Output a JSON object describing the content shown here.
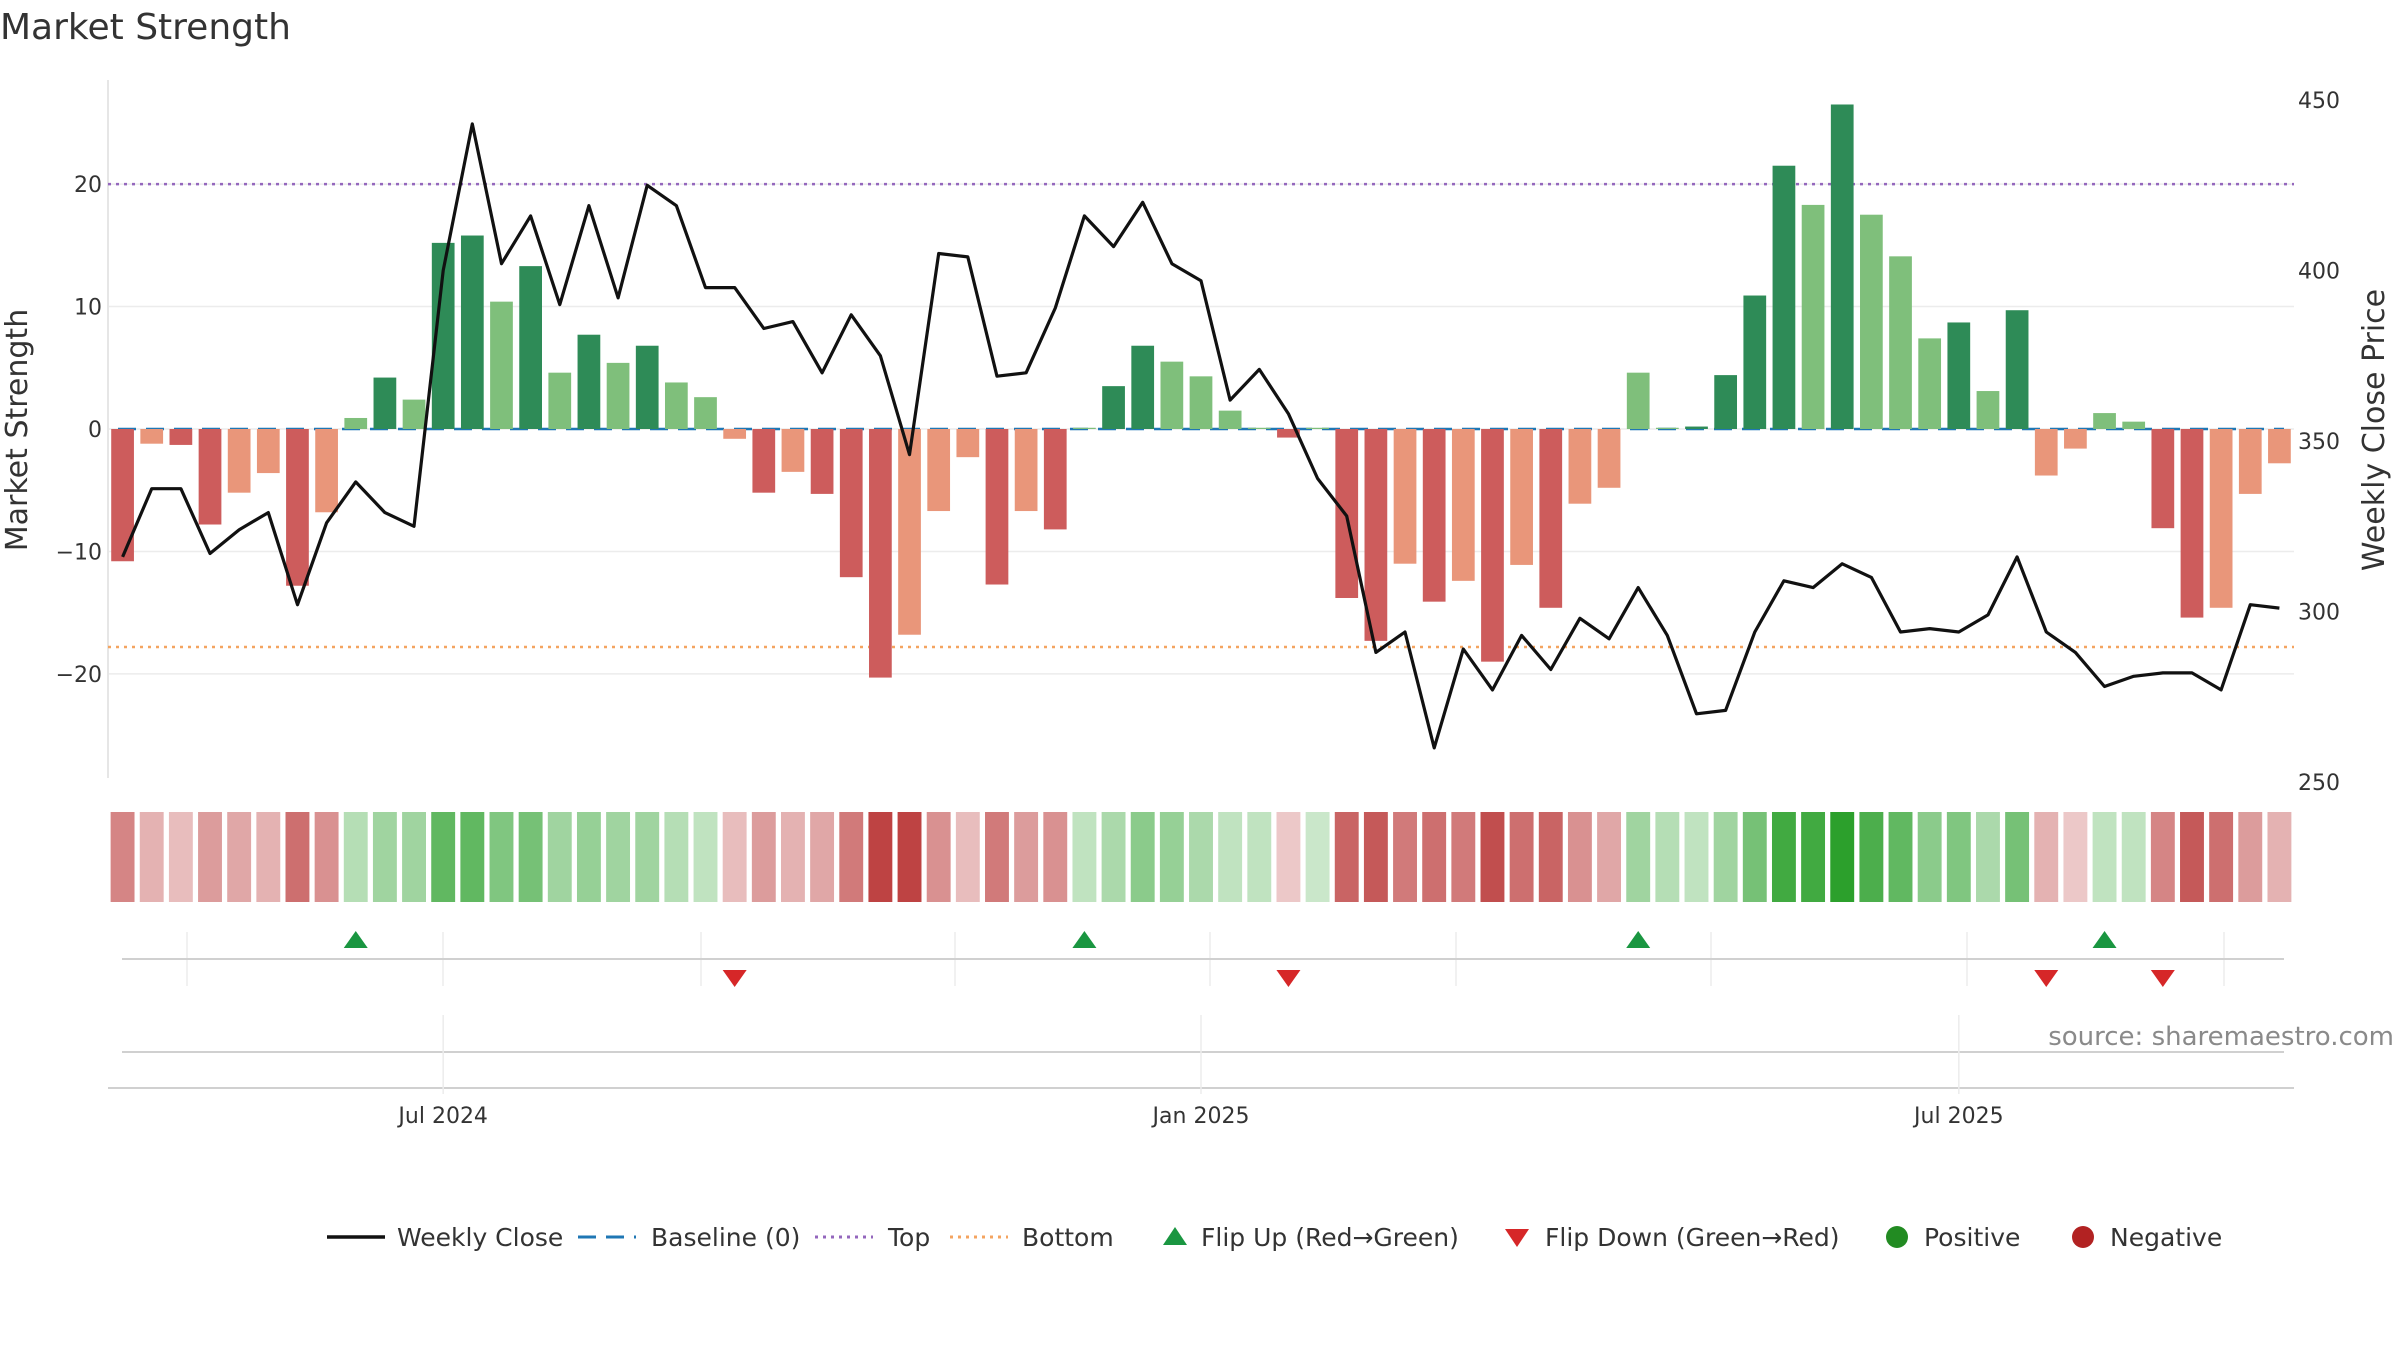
{
  "chart_data": {
    "type": "bar",
    "title": "Market Strength",
    "ylabel_left": "Market Strength",
    "ylabel_right": "Weekly Close Price",
    "ylim_left": [
      -28.5,
      28.5
    ],
    "ylim_right": [
      250,
      450
    ],
    "left_ticks": [
      20,
      10,
      0,
      -10,
      -20
    ],
    "left_tick_labels": [
      "20",
      "10",
      "0",
      "−10",
      "−20"
    ],
    "right_ticks": [
      450,
      400,
      350,
      300,
      250
    ],
    "right_tick_labels": [
      "450",
      "400",
      "350",
      "300",
      "250"
    ],
    "top_threshold": 20,
    "bottom_threshold": -17.8,
    "baseline": 0,
    "x_ticks": [
      {
        "index": 11,
        "label": "Jul 2024"
      },
      {
        "index": 37,
        "label": "Jan 2025"
      },
      {
        "index": 63,
        "label": "Jul 2025"
      }
    ],
    "strength": [
      -10.8,
      -1.2,
      -1.3,
      -7.8,
      -5.2,
      -3.6,
      -12.8,
      -6.8,
      0.9,
      4.2,
      2.4,
      15.2,
      15.8,
      10.4,
      13.3,
      4.6,
      7.7,
      5.4,
      6.8,
      3.8,
      2.6,
      -0.8,
      -5.2,
      -3.5,
      -5.3,
      -12.1,
      -20.3,
      -16.8,
      -6.7,
      -2.3,
      -12.7,
      -6.7,
      -8.2,
      0.1,
      3.5,
      6.8,
      5.5,
      4.3,
      1.5,
      0.1,
      -0.7,
      0.1,
      -13.8,
      -17.3,
      -11.0,
      -14.1,
      -12.4,
      -19.0,
      -11.1,
      -14.6,
      -6.1,
      -4.8,
      4.6,
      0.1,
      0.2,
      4.4,
      10.9,
      21.5,
      18.3,
      26.5,
      17.5,
      14.1,
      7.4,
      8.7,
      3.1,
      9.7,
      -3.8,
      -1.6,
      1.3,
      0.6,
      -8.1,
      -15.4,
      -14.6,
      -5.3,
      -2.8
    ],
    "heat_tint": [
      0.55,
      0.35,
      0.3,
      0.45,
      0.4,
      0.35,
      0.65,
      0.5,
      0.35,
      0.45,
      0.45,
      0.75,
      0.75,
      0.6,
      0.65,
      0.45,
      0.5,
      0.45,
      0.45,
      0.35,
      0.3,
      0.3,
      0.45,
      0.35,
      0.4,
      0.6,
      0.85,
      0.85,
      0.5,
      0.3,
      0.6,
      0.45,
      0.5,
      0.3,
      0.4,
      0.55,
      0.5,
      0.4,
      0.3,
      0.3,
      0.25,
      0.25,
      0.7,
      0.75,
      0.6,
      0.65,
      0.6,
      0.8,
      0.65,
      0.7,
      0.5,
      0.4,
      0.45,
      0.35,
      0.3,
      0.45,
      0.65,
      0.9,
      0.9,
      1.0,
      0.85,
      0.75,
      0.55,
      0.6,
      0.4,
      0.65,
      0.35,
      0.25,
      0.3,
      0.3,
      0.55,
      0.75,
      0.65,
      0.45,
      0.35
    ],
    "close": [
      316,
      336,
      336,
      317,
      324,
      329,
      302,
      326,
      338,
      329,
      325,
      400,
      443,
      402,
      416,
      390,
      419,
      392,
      425,
      419,
      395,
      395,
      383,
      385,
      370,
      387,
      375,
      346,
      405,
      404,
      369,
      370,
      389,
      416,
      407,
      420,
      402,
      397,
      362,
      371,
      358,
      339,
      328,
      288,
      294,
      260,
      289,
      277,
      293,
      283,
      298,
      292,
      307,
      293,
      270,
      271,
      294,
      309,
      307,
      314,
      310,
      294,
      295,
      294,
      299,
      316,
      294,
      288,
      278,
      281,
      282,
      282,
      277,
      302,
      301
    ],
    "flips": [
      {
        "index": 8,
        "dir": "up"
      },
      {
        "index": 21,
        "dir": "down"
      },
      {
        "index": 33,
        "dir": "up"
      },
      {
        "index": 40,
        "dir": "down"
      },
      {
        "index": 52,
        "dir": "up"
      },
      {
        "index": 66,
        "dir": "down"
      },
      {
        "index": 68,
        "dir": "up"
      },
      {
        "index": 70,
        "dir": "down"
      }
    ],
    "legend": [
      {
        "label": "Weekly Close",
        "symbol": "line-solid"
      },
      {
        "label": "Baseline (0)",
        "symbol": "line-dashed"
      },
      {
        "label": "Top",
        "symbol": "line-dotted-top"
      },
      {
        "label": "Bottom",
        "symbol": "line-dotted-bottom"
      },
      {
        "label": "Flip Up (Red→Green)",
        "symbol": "triangle-up"
      },
      {
        "label": "Flip Down (Green→Red)",
        "symbol": "triangle-down"
      },
      {
        "label": "Positive",
        "symbol": "dot-positive"
      },
      {
        "label": "Negative",
        "symbol": "dot-negative"
      }
    ],
    "source": "source: sharemaestro.com"
  },
  "colors": {
    "strong_green": "#2e8b57",
    "light_green": "#7fbf7b",
    "strong_red": "#cd5c5c",
    "light_red": "#e9967a",
    "close_line": "#111111",
    "baseline": "#1f77b4",
    "top": "#9467bd",
    "bottom": "#f4a460",
    "heat_green": "#2ca02c",
    "heat_red": "#b22222",
    "flip_up": "#1a9641",
    "flip_down": "#d62728",
    "positive": "#228b22",
    "negative": "#b22222"
  }
}
